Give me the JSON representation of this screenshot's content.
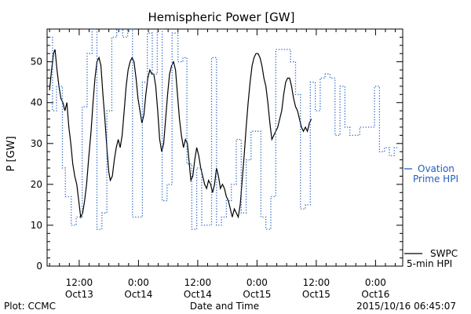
{
  "chart_data": {
    "type": "line",
    "title": "Hemispheric Power [GW]",
    "ylabel": "P [GW]",
    "xlabel": "Date and Time",
    "ylim": [
      0,
      58
    ],
    "xlim_hours": [
      0,
      84
    ],
    "yticks": [
      0,
      10,
      20,
      30,
      40,
      50
    ],
    "xticks": [
      {
        "label": "12:00",
        "date": "Oct13"
      },
      {
        "label": "0:00",
        "date": "Oct14"
      },
      {
        "label": "12:00",
        "date": "Oct14"
      },
      {
        "label": "0:00",
        "date": "Oct15"
      },
      {
        "label": "12:00",
        "date": "Oct15"
      },
      {
        "label": "0:00",
        "date": "Oct16"
      }
    ],
    "series": [
      {
        "name": "SWPC 5-min HPI",
        "legend_lines": [
          "SWPC",
          "5-min HPI"
        ],
        "color": "#000000",
        "style": "solid",
        "points": [
          [
            -6.0,
            43.0
          ],
          [
            -5.6,
            48.0
          ],
          [
            -5.2,
            52.0
          ],
          [
            -4.9,
            53.0
          ],
          [
            -4.5,
            48.0
          ],
          [
            -4.1,
            44.0
          ],
          [
            -3.7,
            41.0
          ],
          [
            -3.3,
            40.0
          ],
          [
            -2.9,
            38.0
          ],
          [
            -2.5,
            40.0
          ],
          [
            -2.1,
            34.0
          ],
          [
            -1.7,
            30.0
          ],
          [
            -1.3,
            25.0
          ],
          [
            -0.9,
            22.0
          ],
          [
            -0.5,
            20.0
          ],
          [
            -0.1,
            16.0
          ],
          [
            0.3,
            12.0
          ],
          [
            0.7,
            13.0
          ],
          [
            1.1,
            16.0
          ],
          [
            1.5,
            20.0
          ],
          [
            1.9,
            26.0
          ],
          [
            2.4,
            33.0
          ],
          [
            2.8,
            40.0
          ],
          [
            3.2,
            46.0
          ],
          [
            3.6,
            50.0
          ],
          [
            4.0,
            51.0
          ],
          [
            4.4,
            49.0
          ],
          [
            4.8,
            42.0
          ],
          [
            5.2,
            36.0
          ],
          [
            5.6,
            29.0
          ],
          [
            6.0,
            23.0
          ],
          [
            6.3,
            21.0
          ],
          [
            6.7,
            22.0
          ],
          [
            7.1,
            26.0
          ],
          [
            7.5,
            29.0
          ],
          [
            7.9,
            31.0
          ],
          [
            8.3,
            29.0
          ],
          [
            8.7,
            32.0
          ],
          [
            9.1,
            38.0
          ],
          [
            9.5,
            44.0
          ],
          [
            9.9,
            48.0
          ],
          [
            10.3,
            50.0
          ],
          [
            10.7,
            51.0
          ],
          [
            11.1,
            50.0
          ],
          [
            11.5,
            46.0
          ],
          [
            11.9,
            41.0
          ],
          [
            12.3,
            38.0
          ],
          [
            12.7,
            35.0
          ],
          [
            13.1,
            37.0
          ],
          [
            13.5,
            42.0
          ],
          [
            13.9,
            46.0
          ],
          [
            14.3,
            48.0
          ],
          [
            14.7,
            47.0
          ],
          [
            15.1,
            47.0
          ],
          [
            15.5,
            44.0
          ],
          [
            15.9,
            38.0
          ],
          [
            16.3,
            31.0
          ],
          [
            16.7,
            28.0
          ],
          [
            17.1,
            30.0
          ],
          [
            17.5,
            36.0
          ],
          [
            17.9,
            42.0
          ],
          [
            18.3,
            47.0
          ],
          [
            18.7,
            49.0
          ],
          [
            19.1,
            50.0
          ],
          [
            19.5,
            48.0
          ],
          [
            19.9,
            42.0
          ],
          [
            20.3,
            36.0
          ],
          [
            20.7,
            32.0
          ],
          [
            21.1,
            29.0
          ],
          [
            21.5,
            31.0
          ],
          [
            21.9,
            30.0
          ],
          [
            22.3,
            25.0
          ],
          [
            22.6,
            21.0
          ],
          [
            23.0,
            22.0
          ],
          [
            23.4,
            26.0
          ],
          [
            23.8,
            29.0
          ],
          [
            24.2,
            27.0
          ],
          [
            24.6,
            24.0
          ],
          [
            25.0,
            22.0
          ],
          [
            25.4,
            20.0
          ],
          [
            25.8,
            19.0
          ],
          [
            26.2,
            21.0
          ],
          [
            26.6,
            20.0
          ],
          [
            27.0,
            18.0
          ],
          [
            27.4,
            20.0
          ],
          [
            27.8,
            24.0
          ],
          [
            28.2,
            22.0
          ],
          [
            28.6,
            19.0
          ],
          [
            29.0,
            20.0
          ],
          [
            29.4,
            19.0
          ],
          [
            29.8,
            17.0
          ],
          [
            30.2,
            16.0
          ],
          [
            30.6,
            14.0
          ],
          [
            31.0,
            12.0
          ],
          [
            31.4,
            14.0
          ],
          [
            31.8,
            13.0
          ],
          [
            32.2,
            12.0
          ],
          [
            32.6,
            15.0
          ],
          [
            33.0,
            21.0
          ],
          [
            33.4,
            27.0
          ],
          [
            33.8,
            34.0
          ],
          [
            34.2,
            40.0
          ],
          [
            34.6,
            45.0
          ],
          [
            35.0,
            49.0
          ],
          [
            35.4,
            51.0
          ],
          [
            35.8,
            52.0
          ],
          [
            36.2,
            52.0
          ],
          [
            36.6,
            51.0
          ],
          [
            37.0,
            49.0
          ],
          [
            37.4,
            46.0
          ],
          [
            37.8,
            44.0
          ],
          [
            38.2,
            40.0
          ],
          [
            38.6,
            35.0
          ],
          [
            39.0,
            31.0
          ],
          [
            39.4,
            32.0
          ],
          [
            39.8,
            33.0
          ],
          [
            40.2,
            34.0
          ],
          [
            40.6,
            36.0
          ],
          [
            41.0,
            38.0
          ],
          [
            41.4,
            42.0
          ],
          [
            41.8,
            45.0
          ],
          [
            42.2,
            46.0
          ],
          [
            42.6,
            46.0
          ],
          [
            43.0,
            44.0
          ],
          [
            43.4,
            41.0
          ],
          [
            43.8,
            39.0
          ],
          [
            44.2,
            38.0
          ],
          [
            44.6,
            36.0
          ],
          [
            45.0,
            34.0
          ],
          [
            45.4,
            33.0
          ],
          [
            45.8,
            34.0
          ],
          [
            46.2,
            33.0
          ],
          [
            46.6,
            35.0
          ],
          [
            47.0,
            36.0
          ]
        ]
      },
      {
        "name": "Ovation Prime HPI",
        "legend_lines": [
          "Ovation",
          "Prime HPI"
        ],
        "color": "#1f5fbf",
        "style": "dotted",
        "points": [
          [
            -6.0,
            56.0
          ],
          [
            -5.4,
            56.0
          ],
          [
            -5.4,
            38.0
          ],
          [
            -4.6,
            38.0
          ],
          [
            -4.6,
            44.0
          ],
          [
            -3.4,
            44.0
          ],
          [
            -3.4,
            24.0
          ],
          [
            -2.8,
            24.0
          ],
          [
            -2.8,
            17.0
          ],
          [
            -1.6,
            17.0
          ],
          [
            -1.6,
            10.0
          ],
          [
            -0.6,
            10.0
          ],
          [
            -0.6,
            12.0
          ],
          [
            0.6,
            12.0
          ],
          [
            0.6,
            39.0
          ],
          [
            1.6,
            39.0
          ],
          [
            1.6,
            52.0
          ],
          [
            2.6,
            52.0
          ],
          [
            2.6,
            58.0
          ],
          [
            3.6,
            58.0
          ],
          [
            3.6,
            9.0
          ],
          [
            4.6,
            9.0
          ],
          [
            4.6,
            13.0
          ],
          [
            5.6,
            13.0
          ],
          [
            5.6,
            38.0
          ],
          [
            6.6,
            38.0
          ],
          [
            6.6,
            56.0
          ],
          [
            7.6,
            56.0
          ],
          [
            7.6,
            58.0
          ],
          [
            8.8,
            58.0
          ],
          [
            8.8,
            56.0
          ],
          [
            9.8,
            56.0
          ],
          [
            9.8,
            58.0
          ],
          [
            10.8,
            58.0
          ],
          [
            10.8,
            12.0
          ],
          [
            12.8,
            12.0
          ],
          [
            12.8,
            45.0
          ],
          [
            13.8,
            45.0
          ],
          [
            13.8,
            57.0
          ],
          [
            14.8,
            57.0
          ],
          [
            14.8,
            47.0
          ],
          [
            15.8,
            47.0
          ],
          [
            15.8,
            58.0
          ],
          [
            16.8,
            58.0
          ],
          [
            16.8,
            16.0
          ],
          [
            17.8,
            16.0
          ],
          [
            17.8,
            20.0
          ],
          [
            18.8,
            20.0
          ],
          [
            18.8,
            57.0
          ],
          [
            20.0,
            57.0
          ],
          [
            20.0,
            50.0
          ],
          [
            21.0,
            50.0
          ],
          [
            21.0,
            51.0
          ],
          [
            21.8,
            51.0
          ],
          [
            21.8,
            25.0
          ],
          [
            22.8,
            25.0
          ],
          [
            22.8,
            9.0
          ],
          [
            23.8,
            9.0
          ],
          [
            23.8,
            24.0
          ],
          [
            24.8,
            24.0
          ],
          [
            24.8,
            10.0
          ],
          [
            26.8,
            10.0
          ],
          [
            26.8,
            51.0
          ],
          [
            27.8,
            51.0
          ],
          [
            27.8,
            10.0
          ],
          [
            28.8,
            10.0
          ],
          [
            28.8,
            12.0
          ],
          [
            29.8,
            12.0
          ],
          [
            29.8,
            16.0
          ],
          [
            30.8,
            16.0
          ],
          [
            30.8,
            20.0
          ],
          [
            31.8,
            20.0
          ],
          [
            31.8,
            31.0
          ],
          [
            32.8,
            31.0
          ],
          [
            32.8,
            13.0
          ],
          [
            33.8,
            13.0
          ],
          [
            33.8,
            26.0
          ],
          [
            34.8,
            26.0
          ],
          [
            34.8,
            33.0
          ],
          [
            36.8,
            33.0
          ],
          [
            36.8,
            12.0
          ],
          [
            37.8,
            12.0
          ],
          [
            37.8,
            9.0
          ],
          [
            38.8,
            9.0
          ],
          [
            38.8,
            17.0
          ],
          [
            39.8,
            17.0
          ],
          [
            39.8,
            53.0
          ],
          [
            42.8,
            53.0
          ],
          [
            42.8,
            50.0
          ],
          [
            43.8,
            50.0
          ],
          [
            43.8,
            42.0
          ],
          [
            44.8,
            42.0
          ],
          [
            44.8,
            14.0
          ],
          [
            45.8,
            14.0
          ],
          [
            45.8,
            15.0
          ],
          [
            46.8,
            15.0
          ],
          [
            46.8,
            45.0
          ],
          [
            47.8,
            45.0
          ],
          [
            47.8,
            38.0
          ],
          [
            48.8,
            38.0
          ],
          [
            48.8,
            46.0
          ],
          [
            49.8,
            46.0
          ],
          [
            49.8,
            47.0
          ],
          [
            50.8,
            47.0
          ],
          [
            50.8,
            46.0
          ],
          [
            51.8,
            46.0
          ],
          [
            51.8,
            32.0
          ],
          [
            52.8,
            32.0
          ],
          [
            52.8,
            44.0
          ],
          [
            53.8,
            44.0
          ],
          [
            53.8,
            34.0
          ],
          [
            54.8,
            34.0
          ],
          [
            54.8,
            32.0
          ],
          [
            56.8,
            32.0
          ],
          [
            56.8,
            34.0
          ],
          [
            59.8,
            34.0
          ],
          [
            59.8,
            44.0
          ],
          [
            60.8,
            44.0
          ],
          [
            60.8,
            28.0
          ],
          [
            61.8,
            28.0
          ],
          [
            61.8,
            29.0
          ],
          [
            62.8,
            29.0
          ],
          [
            62.8,
            27.0
          ],
          [
            63.8,
            27.0
          ],
          [
            63.8,
            29.0
          ],
          [
            64.4,
            29.0
          ]
        ]
      }
    ]
  },
  "footer": {
    "plot_credit": "Plot: CCMC",
    "timestamp": "2015/10/16 06:45:07"
  }
}
